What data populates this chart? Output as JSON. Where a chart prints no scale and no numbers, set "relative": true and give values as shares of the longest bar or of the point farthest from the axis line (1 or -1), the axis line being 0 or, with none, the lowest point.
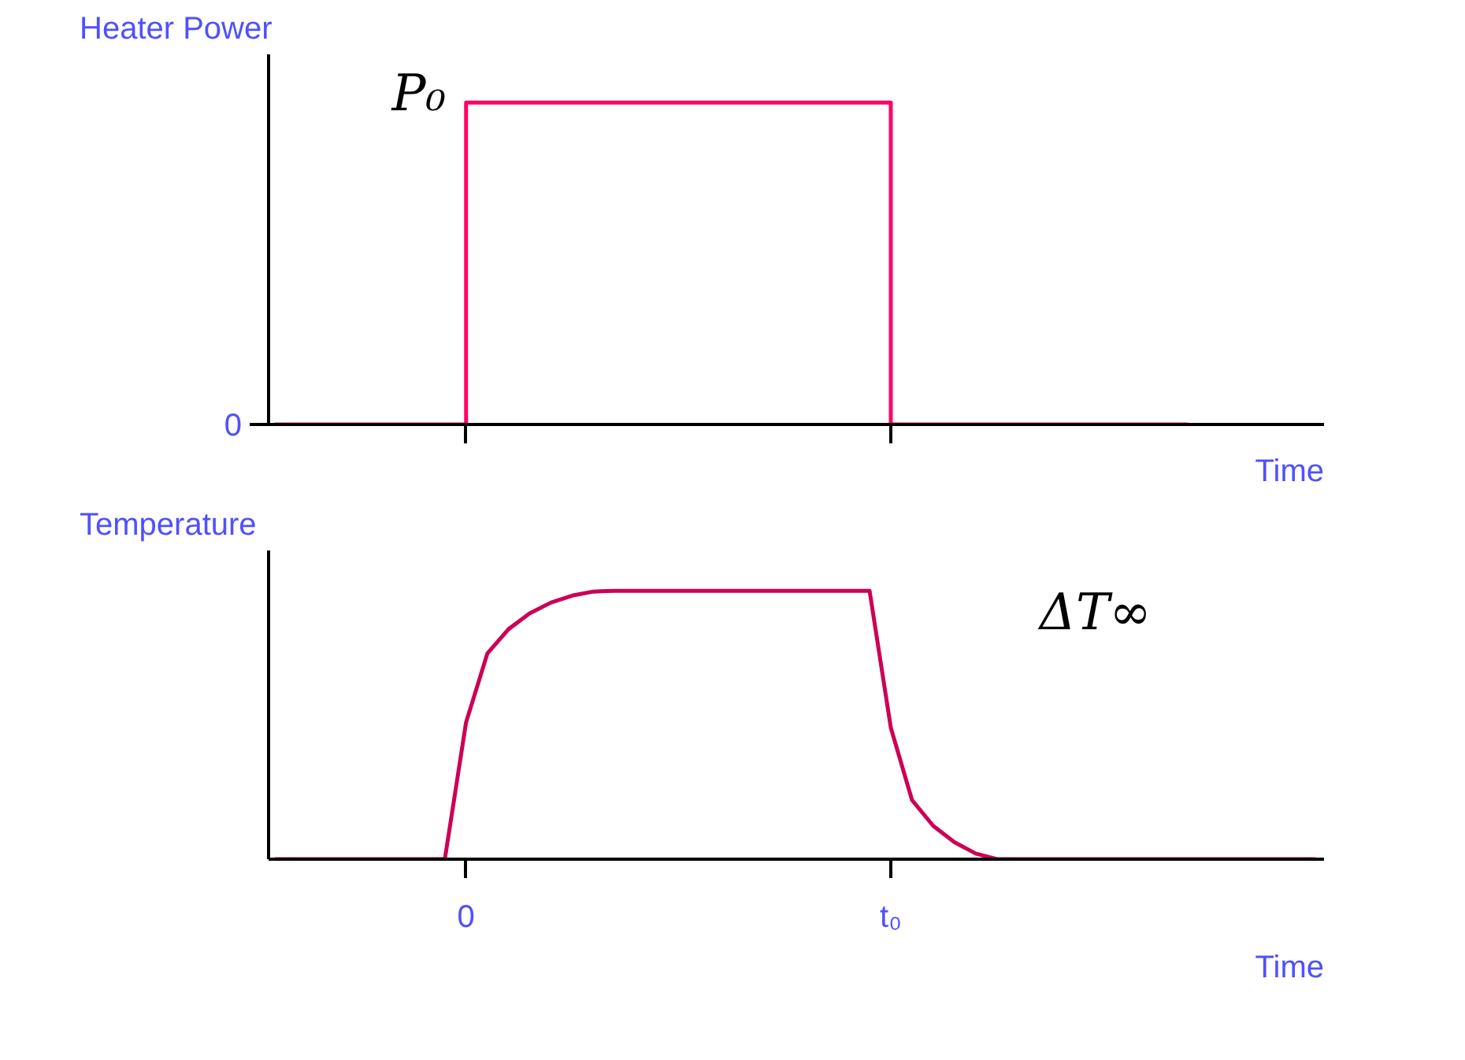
{
  "chart_data": [
    {
      "type": "step",
      "relative": true,
      "xlabel": "Time",
      "ylabel": "Heater Power",
      "grid": false,
      "marker": "none",
      "line_style": "solid",
      "categories": [
        null,
        null,
        null,
        null,
        null,
        null,
        null,
        null,
        null,
        null,
        null,
        null,
        null,
        null,
        null,
        null,
        null,
        null,
        null,
        null,
        null,
        null,
        null,
        null,
        null,
        null,
        null,
        null,
        null,
        null,
        null,
        null,
        null,
        null,
        null,
        null,
        null,
        null,
        null,
        null,
        null,
        null,
        null,
        null,
        null,
        null,
        null,
        null,
        null,
        null
      ],
      "annotations": [
        "0",
        "P₀"
      ],
      "series": [
        {
          "color": "#ff0066",
          "values": [
            0,
            0,
            0,
            0,
            0,
            0,
            0,
            0,
            0,
            1,
            1,
            1,
            1,
            1,
            1,
            1,
            1,
            1,
            1,
            1,
            1,
            1,
            1,
            1,
            1,
            1,
            1,
            1,
            1,
            0,
            0,
            0,
            0,
            0,
            0,
            0,
            0,
            0,
            0,
            0,
            0,
            0,
            0,
            0,
            null,
            null,
            null,
            null,
            null,
            null
          ]
        }
      ]
    },
    {
      "type": "line",
      "relative": true,
      "xlabel": "Time",
      "ylabel": "Temperature",
      "grid": false,
      "marker": "none",
      "line_style": "solid",
      "categories": [
        null,
        null,
        null,
        null,
        null,
        null,
        null,
        null,
        null,
        "0",
        null,
        null,
        null,
        null,
        null,
        null,
        null,
        null,
        null,
        null,
        null,
        null,
        null,
        null,
        null,
        null,
        null,
        null,
        null,
        "t₀",
        null,
        null,
        null,
        null,
        null,
        null,
        null,
        null,
        null,
        null,
        null,
        null,
        null,
        null,
        null,
        null,
        null,
        null,
        null,
        null
      ],
      "annotations": [
        "ΔT∞"
      ],
      "series": [
        {
          "color": "#cc0055",
          "values": [
            0,
            0,
            0,
            0,
            0,
            0,
            0,
            0,
            0,
            0.51,
            0.766,
            0.857,
            0.916,
            0.956,
            0.982,
            0.997,
            1,
            1,
            1,
            1,
            1,
            1,
            1,
            1,
            1,
            1,
            1,
            1,
            1,
            0.49,
            0.22,
            0.124,
            0.063,
            0.021,
            0,
            0,
            0,
            0,
            0,
            0,
            0,
            0,
            0,
            0,
            0,
            0,
            0,
            0,
            0,
            0
          ]
        }
      ]
    }
  ]
}
